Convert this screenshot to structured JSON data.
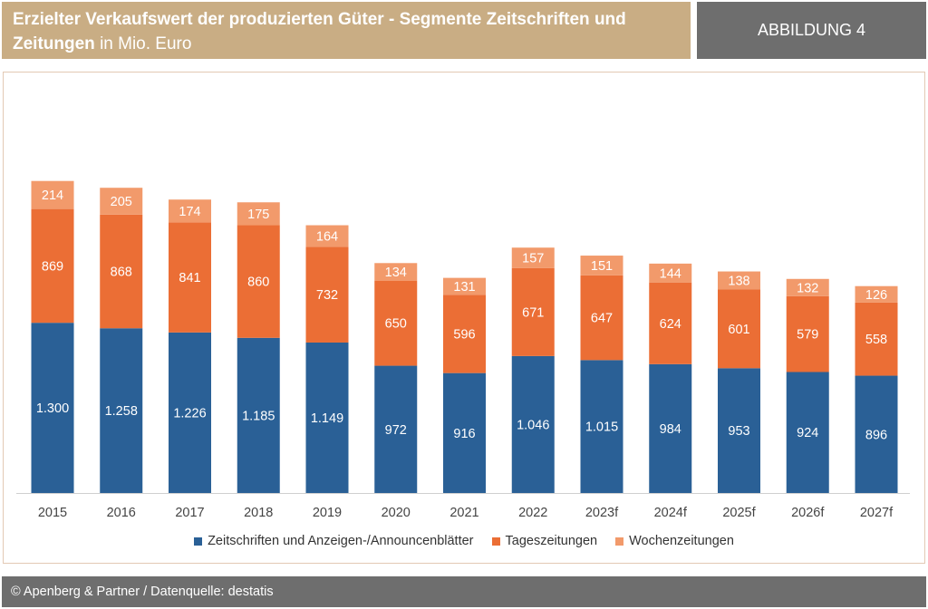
{
  "header": {
    "title_bold": "Erzielter Verkaufswert der produzierten Güter - Segmente Zeitschriften und Zeitungen",
    "title_unit": "in Mio. Euro",
    "figure_label": "ABBILDUNG 4"
  },
  "footer": {
    "text": "© Apenberg & Partner / Datenquelle: destatis"
  },
  "chart_data": {
    "type": "bar",
    "stacked": true,
    "categories": [
      "2015",
      "2016",
      "2017",
      "2018",
      "2019",
      "2020",
      "2021",
      "2022",
      "2023f",
      "2024f",
      "2025f",
      "2026f",
      "2027f"
    ],
    "series": [
      {
        "name": "Zeitschriften und Anzeigen-/Announcenblätter",
        "color": "#2a6096",
        "values": [
          1300,
          1258,
          1226,
          1185,
          1149,
          972,
          916,
          1046,
          1015,
          984,
          953,
          924,
          896
        ],
        "labels": [
          "1.300",
          "1.258",
          "1.226",
          "1.185",
          "1.149",
          "972",
          "916",
          "1.046",
          "1.015",
          "984",
          "953",
          "924",
          "896"
        ]
      },
      {
        "name": "Tageszeitungen",
        "color": "#eb6e35",
        "values": [
          869,
          868,
          841,
          860,
          732,
          650,
          596,
          671,
          647,
          624,
          601,
          579,
          558
        ],
        "labels": [
          "869",
          "868",
          "841",
          "860",
          "732",
          "650",
          "596",
          "671",
          "647",
          "624",
          "601",
          "579",
          "558"
        ]
      },
      {
        "name": "Wochenzeitungen",
        "color": "#f29a6b",
        "values": [
          214,
          205,
          174,
          175,
          164,
          134,
          131,
          157,
          151,
          144,
          138,
          132,
          126
        ],
        "labels": [
          "214",
          "205",
          "174",
          "175",
          "164",
          "134",
          "131",
          "157",
          "151",
          "144",
          "138",
          "132",
          "126"
        ]
      }
    ],
    "ylim": [
      0,
      2900
    ],
    "grid": false,
    "legend_position": "bottom"
  }
}
